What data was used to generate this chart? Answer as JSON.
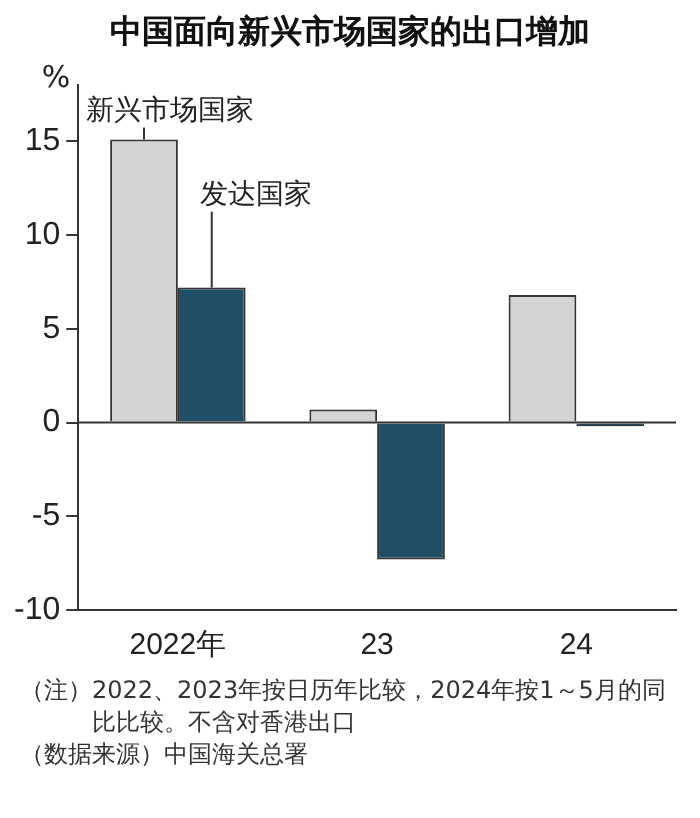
{
  "chart_data": {
    "type": "bar",
    "title": "中国面向新兴市场国家的出口增加",
    "ylabel": "%",
    "categories": [
      "2022年",
      "23",
      "24"
    ],
    "series": [
      {
        "name": "新兴市场国家",
        "color": "#d3d3d3",
        "values": [
          15.1,
          0.7,
          6.8
        ]
      },
      {
        "name": "发达国家",
        "color": "#1f4e66",
        "values": [
          7.2,
          -7.3,
          -0.2
        ]
      }
    ],
    "ylim": [
      -10,
      18
    ],
    "yticks": [
      -10,
      -5,
      0,
      5,
      10,
      15
    ],
    "grid": false,
    "legend": false,
    "ref_lines": [
      {
        "axis": "y",
        "value": 0
      }
    ],
    "annotations": [
      "（注）2022、2023年按日历年比较，2024年按1～5月的同比比较。不含对香港出口",
      "（数据来源）中国海关总署"
    ]
  }
}
